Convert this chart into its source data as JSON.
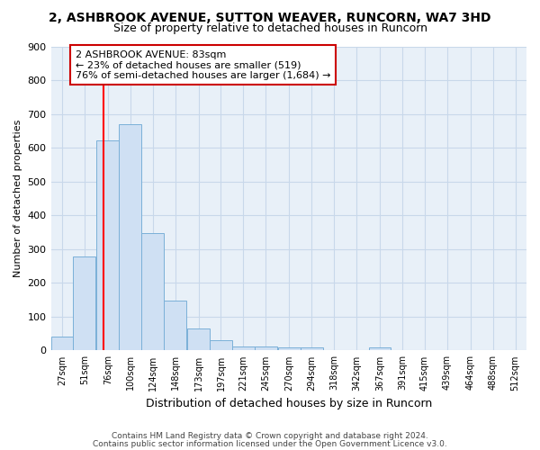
{
  "title": "2, ASHBROOK AVENUE, SUTTON WEAVER, RUNCORN, WA7 3HD",
  "subtitle": "Size of property relative to detached houses in Runcorn",
  "xlabel": "Distribution of detached houses by size in Runcorn",
  "ylabel": "Number of detached properties",
  "footnote1": "Contains HM Land Registry data © Crown copyright and database right 2024.",
  "footnote2": "Contains public sector information licensed under the Open Government Licence v3.0.",
  "bin_labels": [
    "27sqm",
    "51sqm",
    "76sqm",
    "100sqm",
    "124sqm",
    "148sqm",
    "173sqm",
    "197sqm",
    "221sqm",
    "245sqm",
    "270sqm",
    "294sqm",
    "318sqm",
    "342sqm",
    "367sqm",
    "391sqm",
    "415sqm",
    "439sqm",
    "464sqm",
    "488sqm",
    "512sqm"
  ],
  "bar_heights": [
    42,
    278,
    622,
    670,
    348,
    147,
    65,
    30,
    12,
    12,
    10,
    10,
    0,
    0,
    8,
    0,
    0,
    0,
    0,
    0,
    0
  ],
  "bar_color": "#cfe0f3",
  "bar_edge_color": "#7ab0d8",
  "red_line_x": 83,
  "bin_edges": [
    27,
    51,
    76,
    100,
    124,
    148,
    173,
    197,
    221,
    245,
    270,
    294,
    318,
    342,
    367,
    391,
    415,
    439,
    464,
    488,
    512
  ],
  "bin_width": 24,
  "annotation_text": "2 ASHBROOK AVENUE: 83sqm\n← 23% of detached houses are smaller (519)\n76% of semi-detached houses are larger (1,684) →",
  "annotation_box_color": "#ffffff",
  "annotation_box_edge": "#cc0000",
  "ylim": [
    0,
    900
  ],
  "yticks": [
    0,
    100,
    200,
    300,
    400,
    500,
    600,
    700,
    800,
    900
  ],
  "grid_color": "#c8d8ea",
  "bg_color": "#e8f0f8",
  "title_fontsize": 10,
  "subtitle_fontsize": 9
}
